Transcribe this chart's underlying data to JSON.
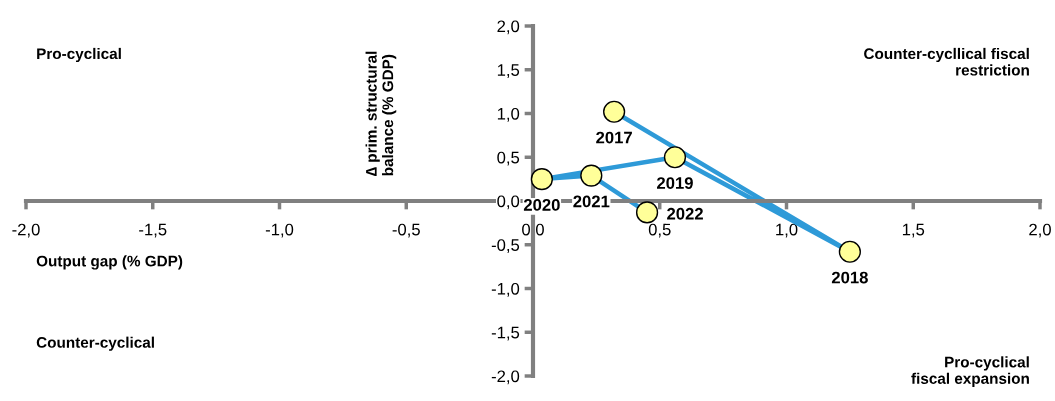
{
  "chart_data": {
    "type": "line",
    "xlabel": "Output gap (% GDP)",
    "ylabel": "∆ prim. structural\nbalance (% GDP)",
    "series": [
      {
        "color": "#2e9ad8",
        "x": [
          0.32,
          1.25,
          0.56,
          0.035,
          0.23,
          0.45
        ],
        "values": [
          1.02,
          -0.58,
          0.5,
          0.25,
          0.29,
          -0.13
        ]
      }
    ],
    "marker": "circle",
    "xlim": [
      -2,
      2
    ],
    "ylim": [
      -2,
      2
    ],
    "xticks": [
      {
        "value": -2,
        "label": "-2,0"
      },
      {
        "value": -1.5,
        "label": "-1,5"
      },
      {
        "value": -1,
        "label": "-1,0"
      },
      {
        "value": -0.5,
        "label": "-0,5"
      },
      {
        "value": 0,
        "label": "0,0"
      },
      {
        "value": 0.5,
        "label": "0,5"
      },
      {
        "value": 1,
        "label": "1,0"
      },
      {
        "value": 1.5,
        "label": "1,5"
      },
      {
        "value": 2,
        "label": "2,0"
      }
    ],
    "yticks": [
      {
        "value": -2,
        "label": "-2,0"
      },
      {
        "value": -1.5,
        "label": "-1,5"
      },
      {
        "value": -1,
        "label": "-1,0"
      },
      {
        "value": -0.5,
        "label": "-0,5"
      },
      {
        "value": 0,
        "label": "0,0"
      },
      {
        "value": 0.5,
        "label": "0,5"
      },
      {
        "value": 1,
        "label": "1,0"
      },
      {
        "value": 1.5,
        "label": "1,5"
      },
      {
        "value": 2,
        "label": "2,0"
      }
    ],
    "grid": false,
    "legend": false,
    "annotations": [
      "Pro-cyclical",
      "Counter-cycllical fiscal\nrestriction",
      "Counter-cyclical",
      "Pro-cyclical\nfiscal expansion",
      {
        "text": "2017",
        "x": 0.32,
        "y": 1.02
      },
      {
        "text": "2018",
        "x": 1.25,
        "y": -0.58
      },
      {
        "text": "2019",
        "x": 0.56,
        "y": 0.5
      },
      {
        "text": "2020",
        "x": 0.035,
        "y": 0.25
      },
      {
        "text": "2021",
        "x": 0.23,
        "y": 0.29
      },
      {
        "text": "2022",
        "x": 0.45,
        "y": -0.13
      }
    ]
  }
}
